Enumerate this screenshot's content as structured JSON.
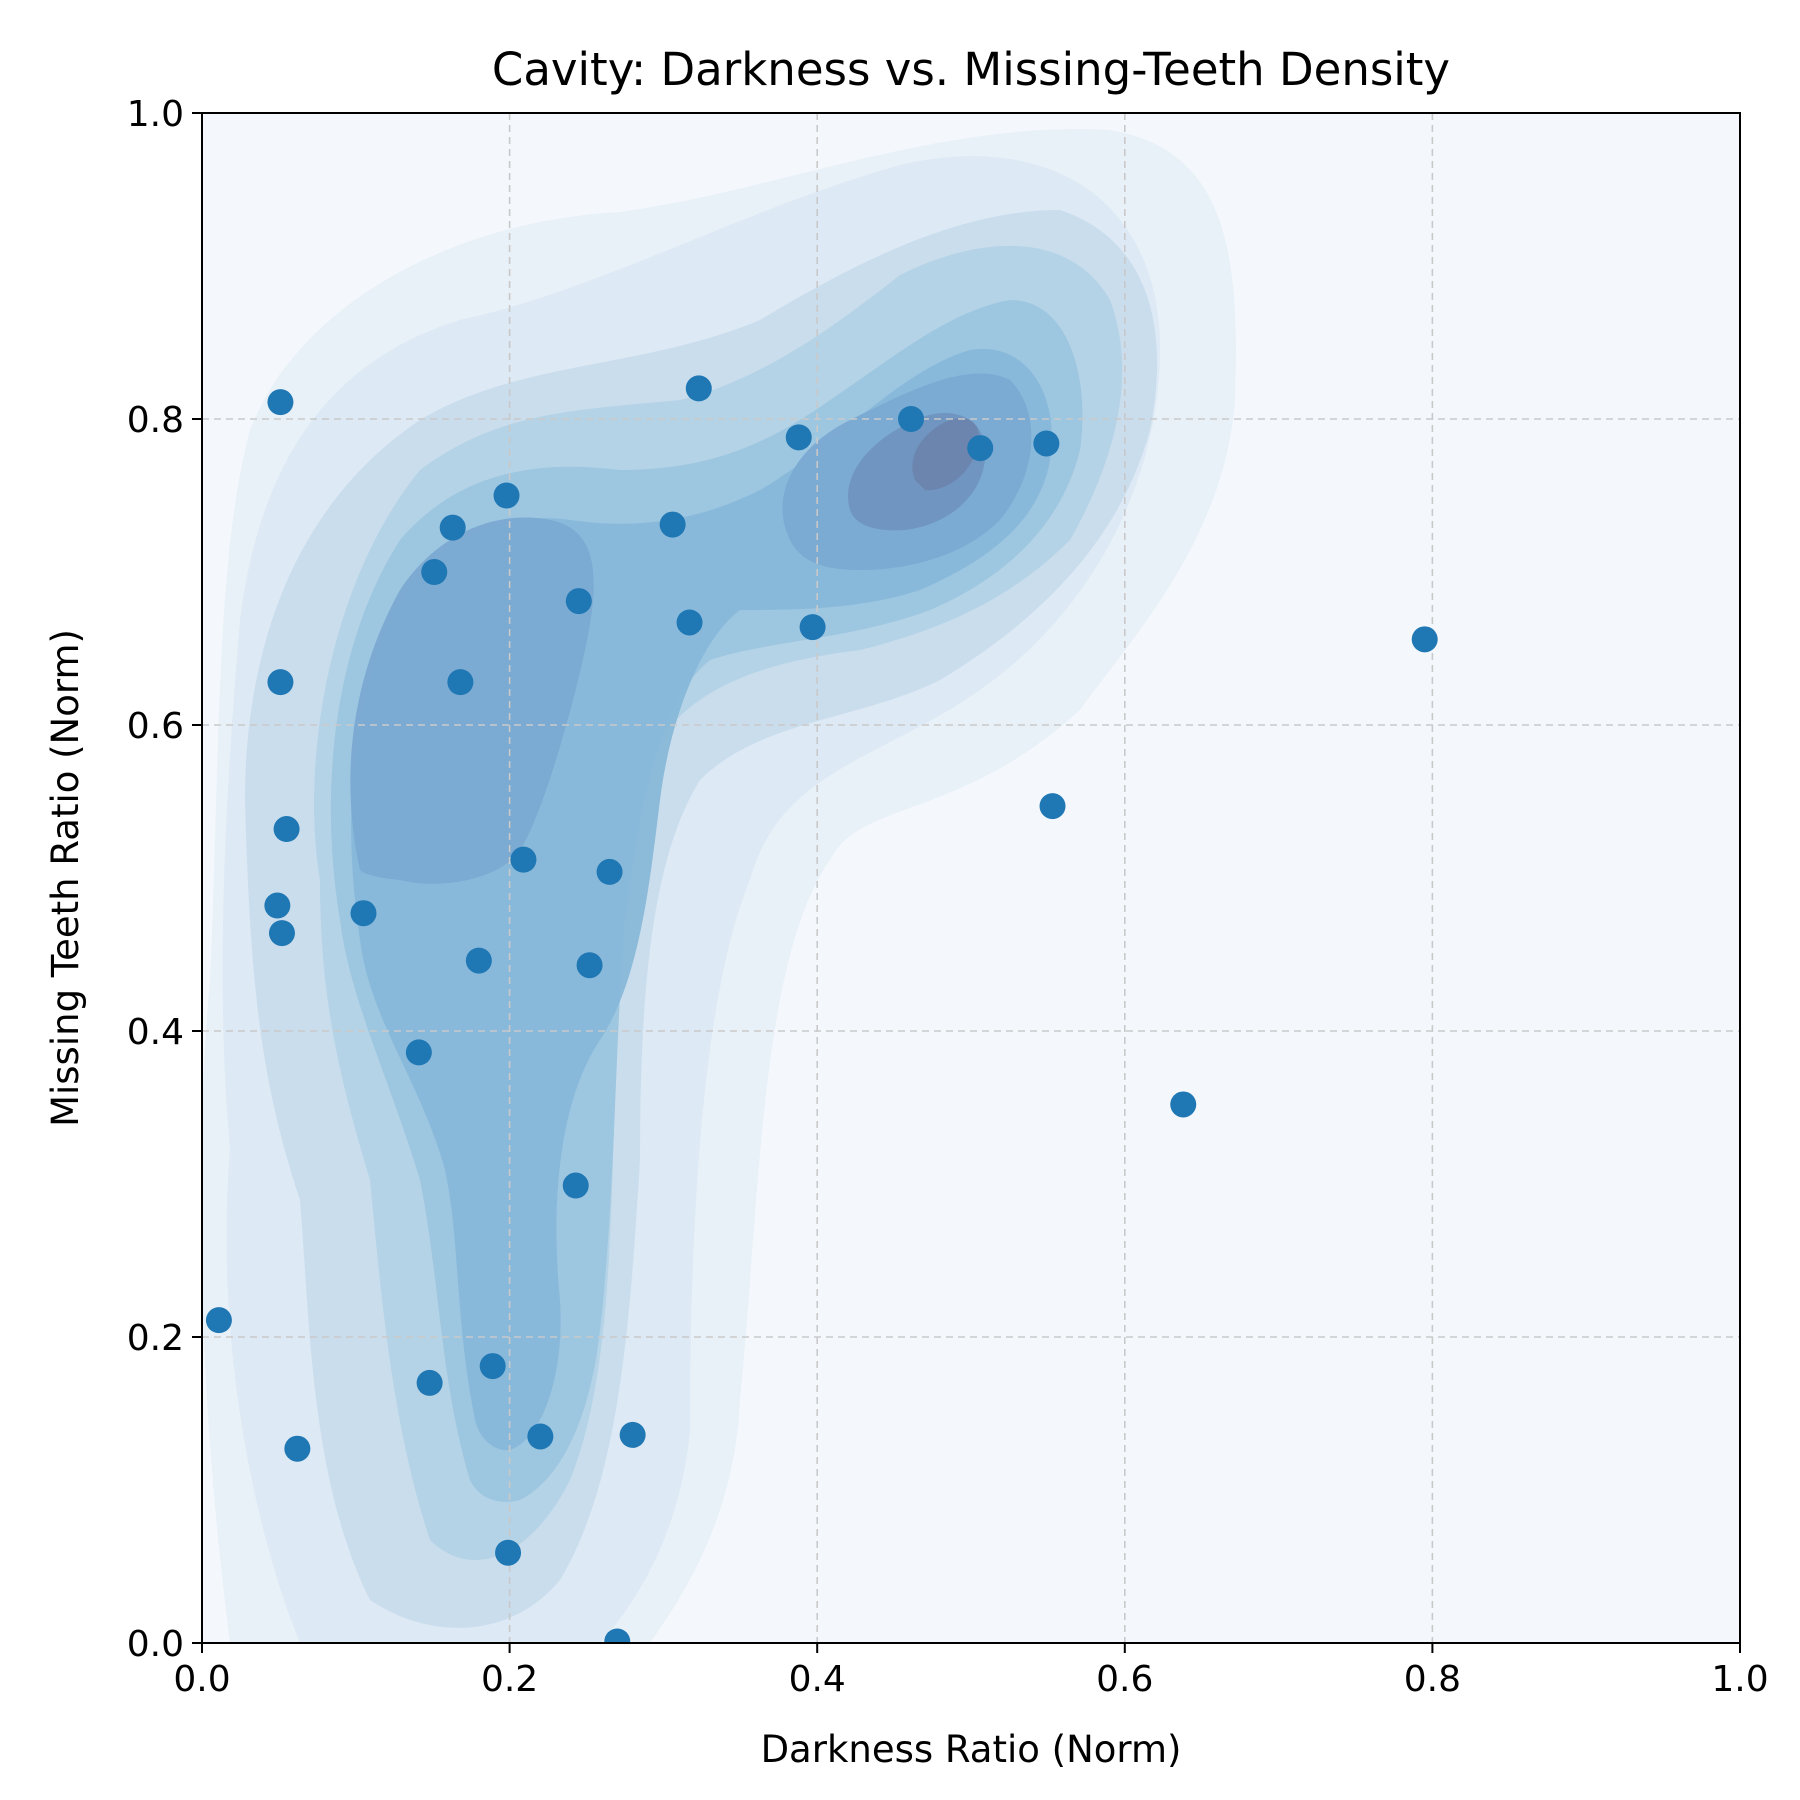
{
  "chart_data": {
    "type": "scatter",
    "title": "Cavity: Darkness vs. Missing-Teeth Density",
    "xlabel": "Darkness Ratio (Norm)",
    "ylabel": "Missing Teeth Ratio (Norm)",
    "xlim": [
      0.0,
      1.0
    ],
    "ylim": [
      0.0,
      1.0
    ],
    "xticks": [
      "0.0",
      "0.2",
      "0.4",
      "0.6",
      "0.8",
      "1.0"
    ],
    "yticks": [
      "0.0",
      "0.2",
      "0.4",
      "0.6",
      "0.8",
      "1.0"
    ],
    "grid": true,
    "overlay": "kde-density-contours",
    "colors": {
      "point": "#1f77b4",
      "density_low": "#f4f8fc",
      "density_high": "#6b84ad",
      "grid": "#c9c9c9"
    },
    "series": [
      {
        "x": [
          0.051,
          0.323,
          0.461,
          0.506,
          0.549,
          0.388,
          0.198,
          0.306,
          0.163,
          0.151,
          0.245,
          0.317,
          0.397,
          0.795,
          0.051,
          0.168,
          0.055,
          0.553,
          0.209,
          0.265,
          0.049,
          0.052,
          0.105,
          0.18,
          0.252,
          0.141,
          0.638,
          0.243,
          0.011,
          0.189,
          0.148,
          0.062,
          0.22,
          0.28,
          0.199,
          0.27
        ],
        "y": [
          0.811,
          0.82,
          0.8,
          0.781,
          0.784,
          0.788,
          0.75,
          0.731,
          0.729,
          0.7,
          0.681,
          0.667,
          0.664,
          0.656,
          0.628,
          0.628,
          0.532,
          0.547,
          0.512,
          0.504,
          0.482,
          0.464,
          0.477,
          0.446,
          0.443,
          0.386,
          0.352,
          0.299,
          0.211,
          0.181,
          0.17,
          0.127,
          0.135,
          0.136,
          0.059,
          0.001
        ]
      }
    ]
  }
}
